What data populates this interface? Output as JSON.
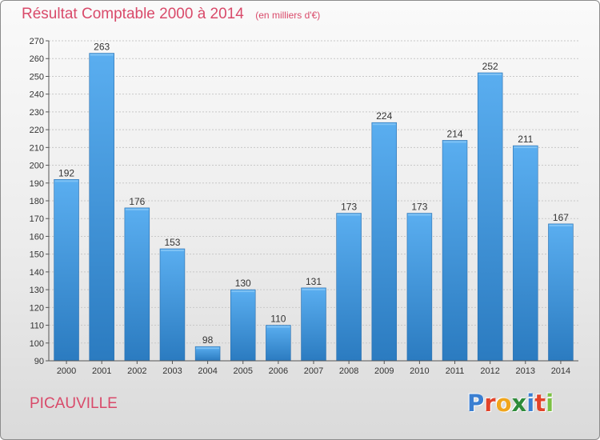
{
  "header": {
    "title": "Résultat Comptable 2000 à 2014",
    "subtitle": "(en milliers d'€)"
  },
  "footer": {
    "commune": "PICAUVILLE",
    "logo_text": "Proxiti",
    "logo_colors": [
      "#3b7fd1",
      "#e2432a",
      "#f0a51c",
      "#2e8b3a",
      "#3b7fd1",
      "#e2432a",
      "#7bc043"
    ]
  },
  "colors": {
    "bar_top": "#5aaef0",
    "bar_bottom": "#2b7bc0",
    "title": "#d94a6a",
    "grid": "#c8c8c8"
  },
  "chart_data": {
    "type": "bar",
    "title": "Résultat Comptable 2000 à 2014",
    "subtitle": "(en milliers d'€)",
    "xlabel": "",
    "ylabel": "",
    "categories": [
      "2000",
      "2001",
      "2002",
      "2003",
      "2004",
      "2005",
      "2006",
      "2007",
      "2008",
      "2009",
      "2010",
      "2011",
      "2012",
      "2013",
      "2014"
    ],
    "values": [
      192,
      263,
      176,
      153,
      98,
      130,
      110,
      131,
      173,
      224,
      173,
      214,
      252,
      211,
      167
    ],
    "ylim": [
      90,
      270
    ],
    "yticks": [
      90,
      100,
      110,
      120,
      130,
      140,
      150,
      160,
      170,
      180,
      190,
      200,
      210,
      220,
      230,
      240,
      250,
      260,
      270
    ],
    "grid": true,
    "data_labels": true
  }
}
